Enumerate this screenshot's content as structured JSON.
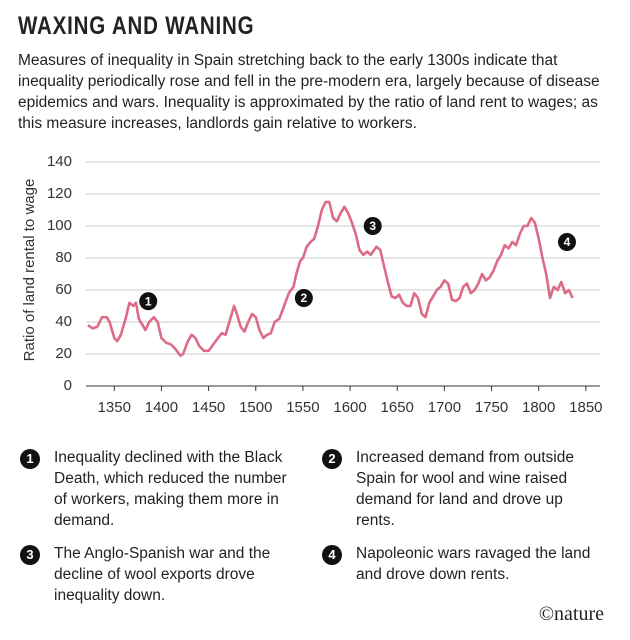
{
  "chart_data": {
    "type": "line",
    "title": "WAXING AND WANING",
    "subtitle": "Measures of inequality in Spain stretching back to the early 1300s indicate that inequality periodically rose and fell in the pre-modern era, largely because of disease epidemics and wars. Inequality is approximated by the ratio of land rent to wages; as this measure increases, landlords gain relative to workers.",
    "y_label": "Ratio of land rental to wage",
    "color": "#dd6b86",
    "grid": true,
    "xlim": [
      1320,
      1865
    ],
    "ylim": [
      0,
      140
    ],
    "xticks": [
      1350,
      1400,
      1450,
      1500,
      1550,
      1600,
      1650,
      1700,
      1750,
      1800,
      1850
    ],
    "yticks": [
      0,
      20,
      40,
      60,
      80,
      100,
      120,
      140
    ],
    "x": [
      1322,
      1327,
      1332,
      1337,
      1342,
      1345,
      1350,
      1353,
      1357,
      1362,
      1366,
      1370,
      1373,
      1376,
      1380,
      1383,
      1387,
      1392,
      1396,
      1400,
      1405,
      1410,
      1415,
      1420,
      1423,
      1428,
      1432,
      1436,
      1440,
      1445,
      1450,
      1455,
      1460,
      1464,
      1468,
      1473,
      1477,
      1480,
      1484,
      1488,
      1492,
      1496,
      1500,
      1504,
      1508,
      1512,
      1516,
      1520,
      1525,
      1530,
      1535,
      1540,
      1543,
      1547,
      1550,
      1554,
      1558,
      1562,
      1566,
      1570,
      1574,
      1578,
      1582,
      1586,
      1590,
      1594,
      1598,
      1602,
      1606,
      1610,
      1614,
      1618,
      1622,
      1628,
      1632,
      1636,
      1640,
      1644,
      1648,
      1652,
      1656,
      1660,
      1664,
      1668,
      1672,
      1676,
      1680,
      1684,
      1688,
      1692,
      1696,
      1700,
      1704,
      1708,
      1712,
      1716,
      1720,
      1724,
      1728,
      1732,
      1736,
      1740,
      1744,
      1748,
      1752,
      1756,
      1760,
      1764,
      1768,
      1772,
      1776,
      1780,
      1784,
      1788,
      1792,
      1796,
      1800,
      1804,
      1808,
      1812,
      1816,
      1820,
      1824,
      1828,
      1832,
      1836
    ],
    "values": [
      38,
      36,
      37,
      43,
      43,
      40,
      30,
      28,
      32,
      42,
      52,
      50,
      52,
      42,
      38,
      35,
      40,
      43,
      40,
      30,
      27,
      26,
      23,
      19,
      20,
      28,
      32,
      30,
      25,
      22,
      22,
      26,
      30,
      33,
      32,
      42,
      50,
      45,
      37,
      34,
      40,
      45,
      43,
      35,
      30,
      32,
      33,
      40,
      42,
      50,
      58,
      62,
      70,
      78,
      80,
      87,
      90,
      92,
      100,
      110,
      115,
      115,
      105,
      103,
      108,
      112,
      108,
      102,
      95,
      85,
      82,
      84,
      82,
      87,
      85,
      75,
      65,
      56,
      55,
      57,
      52,
      50,
      50,
      58,
      55,
      45,
      43,
      52,
      56,
      60,
      62,
      66,
      64,
      54,
      53,
      55,
      62,
      64,
      58,
      60,
      64,
      70,
      66,
      68,
      72,
      78,
      82,
      88,
      86,
      90,
      88,
      95,
      100,
      100,
      105,
      102,
      92,
      80,
      70,
      55,
      62,
      60,
      65,
      58,
      60,
      55
    ],
    "annotations": [
      {
        "label": "1",
        "x": 1386,
        "y": 53,
        "text": "Inequality declined with the Black Death, which reduced the number of workers, making them more in demand."
      },
      {
        "label": "2",
        "x": 1551,
        "y": 55,
        "text": "Increased demand from outside Spain for wool and wine raised demand for land and drove up rents."
      },
      {
        "label": "3",
        "x": 1624,
        "y": 100,
        "text": "The Anglo-Spanish war and the decline of wool exports drove inequality down."
      },
      {
        "label": "4",
        "x": 1830,
        "y": 90,
        "text": "Napoleonic wars ravaged the land and drove down rents."
      }
    ],
    "credit": "©nature"
  }
}
